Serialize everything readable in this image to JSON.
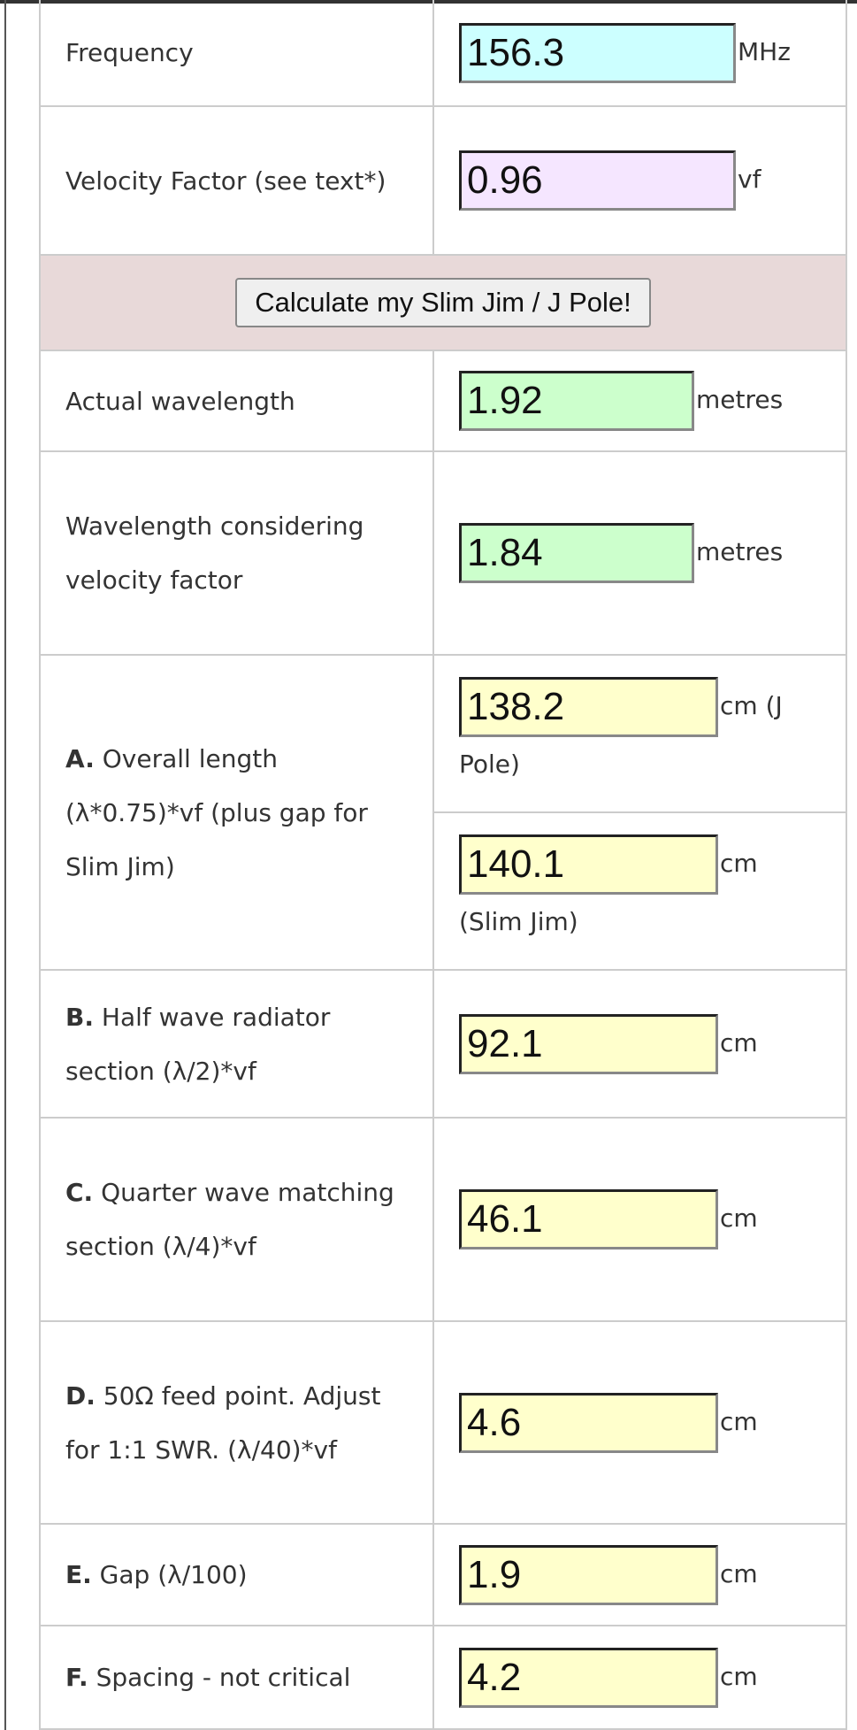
{
  "rows": [
    {
      "label": "Frequency",
      "fields": [
        {
          "value": "156.3",
          "unit": "MHz"
        }
      ]
    },
    {
      "label": "Velocity Factor (see text*)",
      "fields": [
        {
          "value": "0.96",
          "unit": "vf"
        }
      ]
    },
    {
      "button": "Calculate my Slim Jim / J Pole!"
    },
    {
      "label": "Actual wavelength",
      "fields": [
        {
          "value": "1.92",
          "unit": "metres"
        }
      ]
    },
    {
      "label": "Wavelength considering velocity factor",
      "fields": [
        {
          "value": "1.84",
          "unit": "metres"
        }
      ]
    },
    {
      "prefix": "A.",
      "label": "Overall length (λ*0.75)*vf (plus gap for Slim Jim)",
      "fields": [
        {
          "value": "138.2",
          "unit": "cm (J Pole)"
        },
        {
          "value": "140.1",
          "unit": "cm (Slim Jim)"
        }
      ]
    },
    {
      "prefix": "B.",
      "label": "Half wave radiator section (λ/2)*vf",
      "fields": [
        {
          "value": "92.1",
          "unit": "cm"
        }
      ]
    },
    {
      "prefix": "C.",
      "label": "Quarter wave matching section (λ/4)*vf",
      "fields": [
        {
          "value": "46.1",
          "unit": "cm"
        }
      ]
    },
    {
      "prefix": "D.",
      "label": "50Ω feed point. Adjust for 1:1 SWR. (λ/40)*vf",
      "fields": [
        {
          "value": "4.6",
          "unit": "cm"
        }
      ]
    },
    {
      "prefix": "E.",
      "label": "Gap (λ/100)",
      "fields": [
        {
          "value": "1.9",
          "unit": "cm"
        }
      ]
    },
    {
      "prefix": "F.",
      "label": "Spacing - not critical",
      "fields": [
        {
          "value": "4.2",
          "unit": "cm"
        }
      ]
    }
  ]
}
